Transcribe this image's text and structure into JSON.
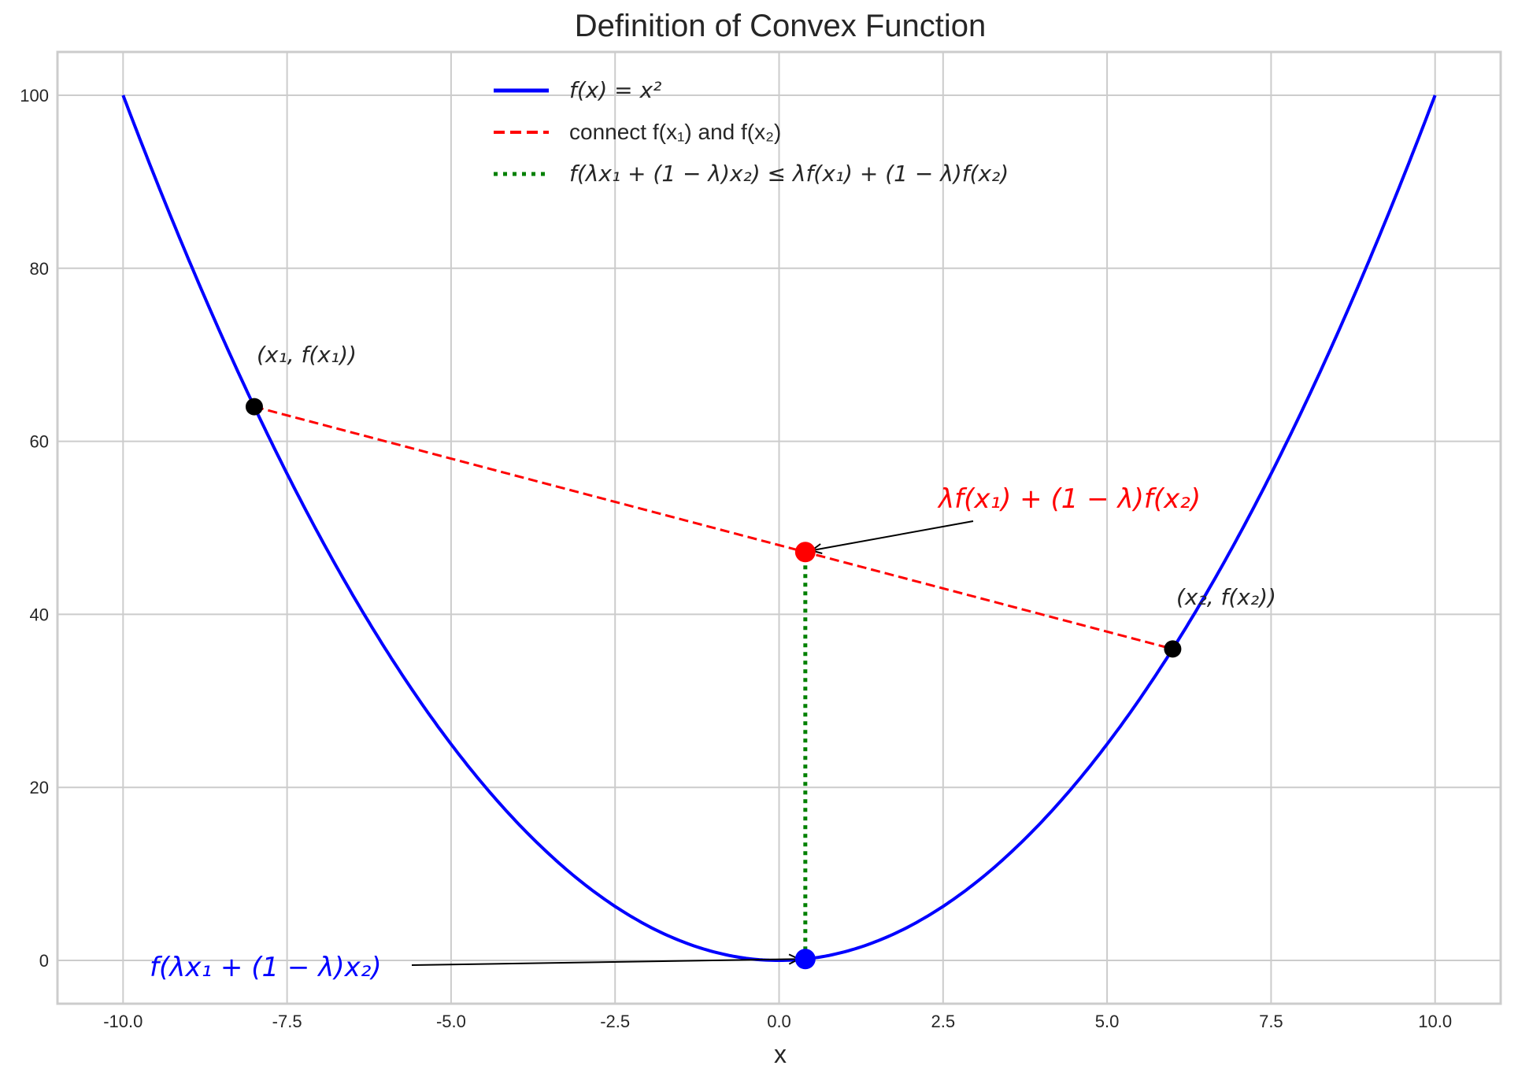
{
  "chart_data": {
    "type": "line",
    "title": "Definition of Convex Function",
    "xlabel": "x",
    "ylabel": "",
    "xlim": [
      -11,
      11
    ],
    "ylim": [
      -5,
      105
    ],
    "grid": true,
    "legend_placement": "top-center",
    "x_ticks": [
      "-10.0",
      "-7.5",
      "-5.0",
      "-2.5",
      "0.0",
      "2.5",
      "5.0",
      "7.5",
      "10.0"
    ],
    "y_ticks": [
      "0",
      "20",
      "40",
      "60",
      "80",
      "100"
    ],
    "x_tick_values": [
      -10,
      -7.5,
      -5,
      -2.5,
      0,
      2.5,
      5,
      7.5,
      10
    ],
    "y_tick_values": [
      0,
      20,
      40,
      60,
      80,
      100
    ],
    "series": [
      {
        "name": "f(x) = x²",
        "style": "solid",
        "color": "#0000ff",
        "function": "x^2",
        "x_range": [
          -10,
          10
        ]
      },
      {
        "name": "connect f(x₁) and f(x₂)",
        "style": "dashed",
        "color": "#ff0000",
        "x": [
          -8,
          6
        ],
        "y": [
          64,
          36
        ]
      },
      {
        "name": "f(λx₁ + (1 − λ)x₂) ≤ λf(x₁) + (1 − λ)f(x₂)",
        "style": "dotted",
        "color": "#008000",
        "x": [
          0.4,
          0.4
        ],
        "y": [
          0.16,
          47.2
        ]
      }
    ],
    "points": [
      {
        "x": -8,
        "y": 64,
        "color": "#000000"
      },
      {
        "x": 6,
        "y": 36,
        "color": "#000000"
      },
      {
        "x": 0.4,
        "y": 47.2,
        "color": "#ff0000"
      },
      {
        "x": 0.4,
        "y": 0.16,
        "color": "#0000ff"
      }
    ],
    "annotations": [
      {
        "text": "(x₁, f(x₁))",
        "color": "#262626",
        "x": -8,
        "y": 64
      },
      {
        "text": "(x₂, f(x₂))",
        "color": "#262626",
        "x": 6,
        "y": 36
      },
      {
        "text": "λf(x₁) + (1 − λ)f(x₂)",
        "color": "#ff0000",
        "x": 0.4,
        "y": 47.2,
        "arrow": true
      },
      {
        "text": "f(λx₁ + (1 − λ)x₂)",
        "color": "#0000ff",
        "x": 0.4,
        "y": 0.16,
        "arrow": true
      }
    ]
  }
}
